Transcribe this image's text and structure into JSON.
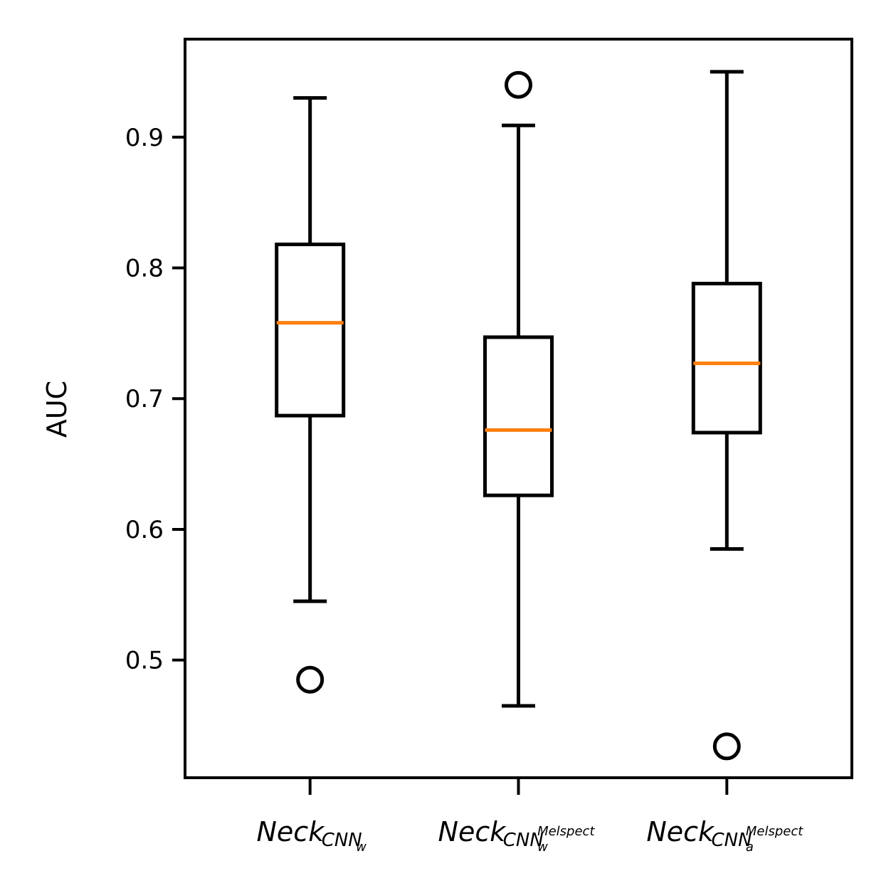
{
  "chart_data": {
    "type": "box",
    "title": "",
    "xlabel": "",
    "ylabel": "AUC",
    "ylim": [
      0.41,
      0.975
    ],
    "yticks": [
      "0.5",
      "0.6",
      "0.7",
      "0.8",
      "0.9"
    ],
    "grid": false,
    "categories": [
      {
        "base": "Neck",
        "sub": "CNN",
        "subsub": "w",
        "subsup": ""
      },
      {
        "base": "Neck",
        "sub": "CNN",
        "subsub": "w",
        "subsup": "Melspect"
      },
      {
        "base": "Neck",
        "sub": "CNN",
        "subsub": "a",
        "subsup": "Melspect"
      }
    ],
    "boxes": [
      {
        "whisker_low": 0.545,
        "q1": 0.687,
        "median": 0.758,
        "q3": 0.818,
        "whisker_high": 0.93,
        "outliers": [
          0.485
        ]
      },
      {
        "whisker_low": 0.465,
        "q1": 0.626,
        "median": 0.676,
        "q3": 0.747,
        "whisker_high": 0.909,
        "outliers": [
          0.94
        ]
      },
      {
        "whisker_low": 0.585,
        "q1": 0.674,
        "median": 0.727,
        "q3": 0.788,
        "whisker_high": 0.95,
        "outliers": [
          0.434
        ]
      }
    ],
    "colors": {
      "box": "#000000",
      "median": "#ff7f0e",
      "outlier": "#000000"
    }
  }
}
